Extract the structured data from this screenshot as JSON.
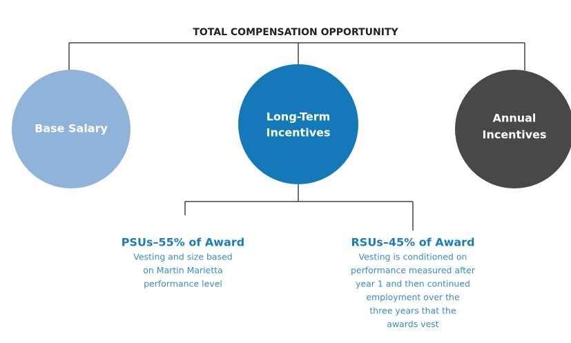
{
  "title": "TOTAL COMPENSATION OPPORTUNITY",
  "nodes": [
    {
      "label": [
        "Base Salary"
      ]
    },
    {
      "label": [
        "Long-Term",
        "Incentives"
      ]
    },
    {
      "label": [
        "Annual",
        "Incentives"
      ]
    }
  ],
  "awards": [
    {
      "heading": "PSUs–55% of Award",
      "description": [
        "Vesting and size based",
        "on Martin Marietta",
        "performance level"
      ]
    },
    {
      "heading": "RSUs–45% of Award",
      "description": [
        "Vesting is conditioned on",
        "performance measured after",
        "year 1 and then continued",
        "employment over the",
        "three years that the",
        "awards vest"
      ]
    }
  ]
}
